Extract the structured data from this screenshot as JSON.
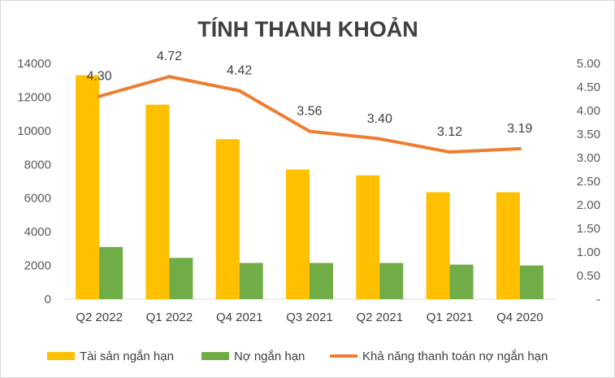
{
  "chart_data": {
    "type": "bar",
    "title": "TÍNH THANH KHOẢN",
    "categories": [
      "Q2 2022",
      "Q1 2022",
      "Q4 2021",
      "Q3 2021",
      "Q2 2021",
      "Q1 2021",
      "Q4 2020"
    ],
    "series": [
      {
        "name": "Tài sản ngắn hạn",
        "type": "bar",
        "axis": "left",
        "color": "#FFC000",
        "values": [
          13300,
          11550,
          9500,
          7700,
          7350,
          6350,
          6350
        ]
      },
      {
        "name": "Nợ ngắn hạn",
        "type": "bar",
        "axis": "left",
        "color": "#70AD47",
        "values": [
          3100,
          2450,
          2150,
          2150,
          2150,
          2050,
          2000
        ]
      },
      {
        "name": "Khả năng thanh toán nợ ngắn hạn",
        "type": "line",
        "axis": "right",
        "color": "#ED7D31",
        "values": [
          4.3,
          4.72,
          4.42,
          3.56,
          3.4,
          3.12,
          3.19
        ],
        "data_labels": [
          "4.30",
          "4.72",
          "4.42",
          "3.56",
          "3.40",
          "3.12",
          "3.19"
        ]
      }
    ],
    "y_left": {
      "ylim": [
        0,
        14000
      ],
      "ticks": [
        "0",
        "2000",
        "4000",
        "6000",
        "8000",
        "10000",
        "12000",
        "14000"
      ]
    },
    "y_right": {
      "ylim": [
        0,
        5
      ],
      "ticks": [
        "-",
        "0.50",
        "1.00",
        "1.50",
        "2.00",
        "2.50",
        "3.00",
        "3.50",
        "4.00",
        "4.50",
        "5.00"
      ]
    },
    "grid": false,
    "legend": "bottom"
  }
}
